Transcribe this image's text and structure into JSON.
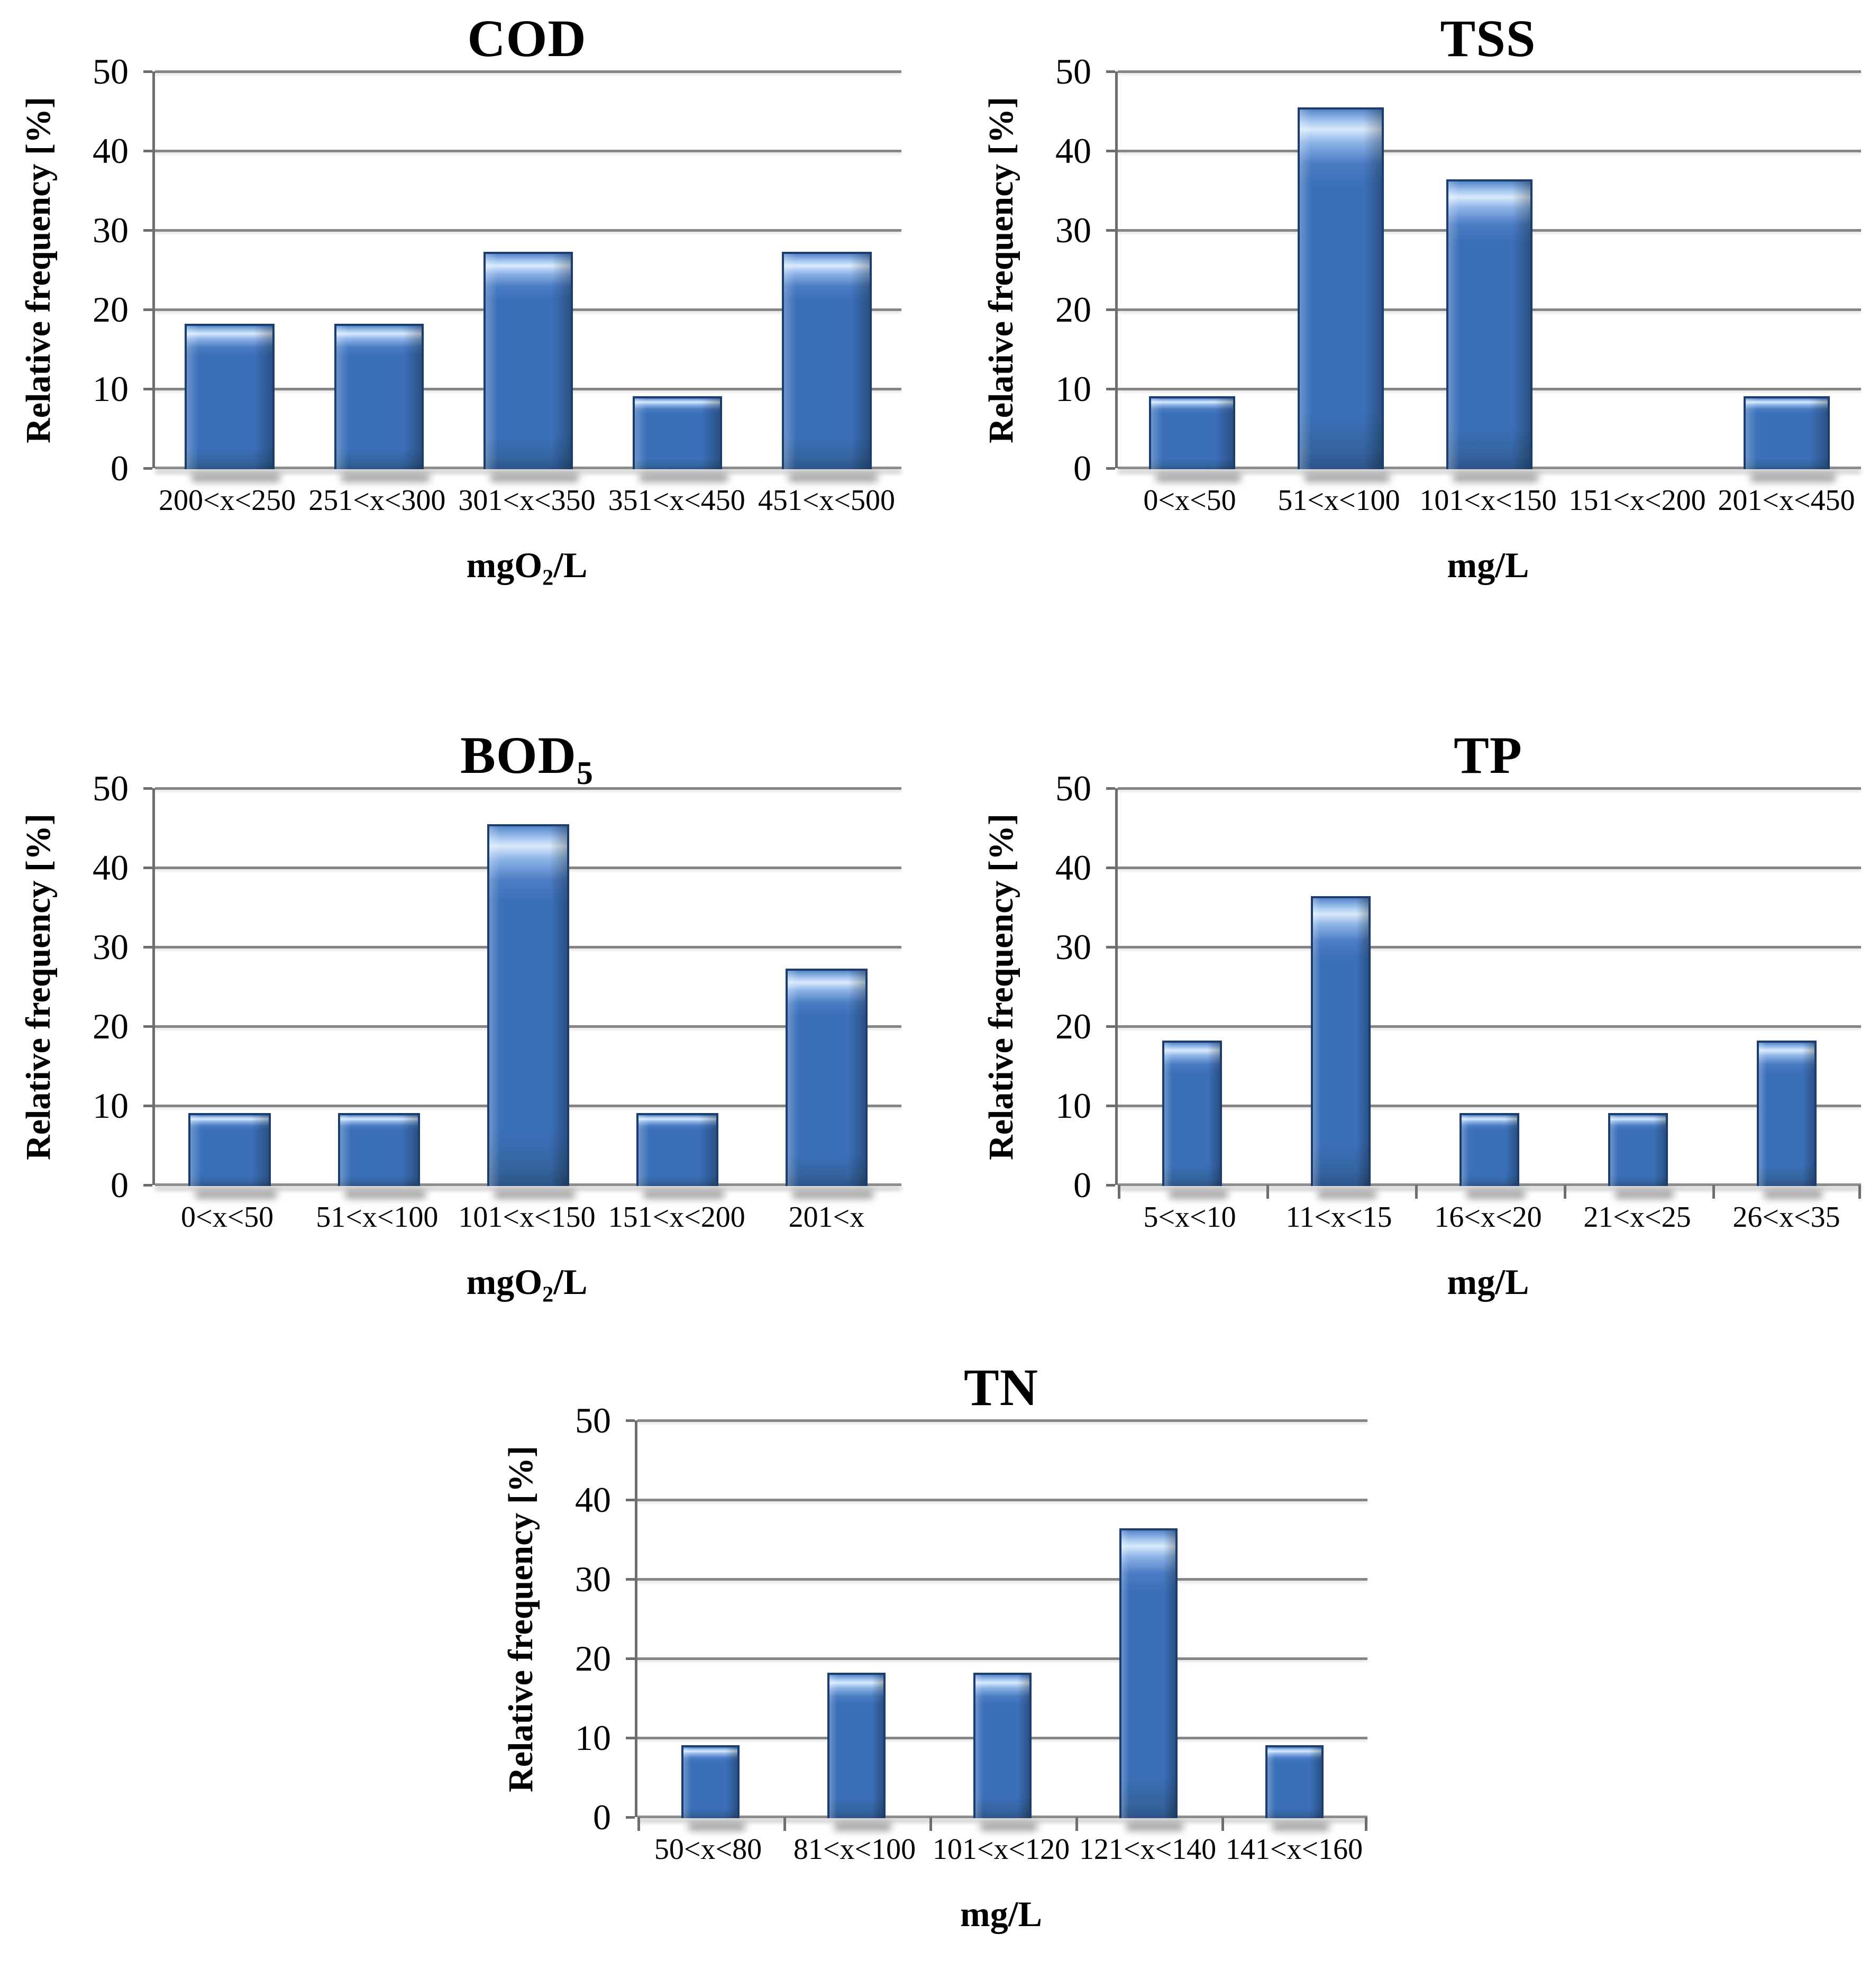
{
  "page": {
    "background": "#ffffff"
  },
  "styles": {
    "bar_fill": "#3b70b9",
    "bar_highlight": "#d9e9fb",
    "bar_border": "#1c3e6e",
    "gridline_color": "#858585",
    "axis_color": "#6e6e6e",
    "text_color": "#000000"
  },
  "chart_data": [
    {
      "id": "cod",
      "type": "bar",
      "title": {
        "text": "COD",
        "sub": ""
      },
      "ylabel": "Relative frequency [%]",
      "xlabel": {
        "pre": "mgO",
        "sub": "2",
        "post": "/L"
      },
      "categories": [
        "200<x<250",
        "251<x<300",
        "301<x<350",
        "351<x<450",
        "451<x<500"
      ],
      "values": [
        18.2,
        18.2,
        27.3,
        9.1,
        27.3
      ],
      "ylim": [
        0,
        50
      ],
      "yticks": [
        0,
        10,
        20,
        30,
        40,
        50
      ],
      "grid": true,
      "legend": "none",
      "x_axis_ticks": false,
      "bar_width_pct": 60
    },
    {
      "id": "tss",
      "type": "bar",
      "title": {
        "text": "TSS",
        "sub": ""
      },
      "ylabel": "Relative frequency [%]",
      "xlabel": {
        "pre": "mg",
        "sub": "",
        "post": "/L"
      },
      "categories": [
        "0<x<50",
        "51<x<100",
        "101<x<150",
        "151<x<200",
        "201<x<450"
      ],
      "values": [
        9.1,
        45.5,
        36.4,
        0,
        9.1
      ],
      "ylim": [
        0,
        50
      ],
      "yticks": [
        0,
        10,
        20,
        30,
        40,
        50
      ],
      "grid": true,
      "legend": "none",
      "x_axis_ticks": false,
      "bar_width_pct": 58
    },
    {
      "id": "bod5",
      "type": "bar",
      "title": {
        "text": "BOD",
        "sub": "5"
      },
      "ylabel": "Relative frequency [%]",
      "xlabel": {
        "pre": "mgO",
        "sub": "2",
        "post": "/L"
      },
      "categories": [
        "0<x<50",
        "51<x<100",
        "101<x<150",
        "151<x<200",
        "201<x"
      ],
      "values": [
        9.1,
        9.1,
        45.5,
        9.1,
        27.3
      ],
      "ylim": [
        0,
        50
      ],
      "yticks": [
        0,
        10,
        20,
        30,
        40,
        50
      ],
      "grid": true,
      "legend": "none",
      "x_axis_ticks": false,
      "bar_width_pct": 55
    },
    {
      "id": "tp",
      "type": "bar",
      "title": {
        "text": "TP",
        "sub": ""
      },
      "ylabel": "Relative frequency [%]",
      "xlabel": {
        "pre": "mg",
        "sub": "",
        "post": "/L"
      },
      "categories": [
        "5<x<10",
        "11<x<15",
        "16<x<20",
        "21<x<25",
        "26<x<35"
      ],
      "values": [
        18.2,
        36.4,
        9.1,
        9.1,
        18.2
      ],
      "ylim": [
        0,
        50
      ],
      "yticks": [
        0,
        10,
        20,
        30,
        40,
        50
      ],
      "grid": true,
      "legend": "none",
      "x_axis_ticks": true,
      "bar_width_pct": 40
    },
    {
      "id": "tn",
      "type": "bar",
      "title": {
        "text": "TN",
        "sub": ""
      },
      "ylabel": "Relative frequency [%]",
      "xlabel": {
        "pre": "mg",
        "sub": "",
        "post": "/L"
      },
      "categories": [
        "50<x<80",
        "81<x<100",
        "101<x<120",
        "121<x<140",
        "141<x<160"
      ],
      "values": [
        9.1,
        18.2,
        18.2,
        36.4,
        9.1
      ],
      "ylim": [
        0,
        50
      ],
      "yticks": [
        0,
        10,
        20,
        30,
        40,
        50
      ],
      "grid": true,
      "legend": "none",
      "x_axis_ticks": true,
      "bar_width_pct": 40
    }
  ]
}
